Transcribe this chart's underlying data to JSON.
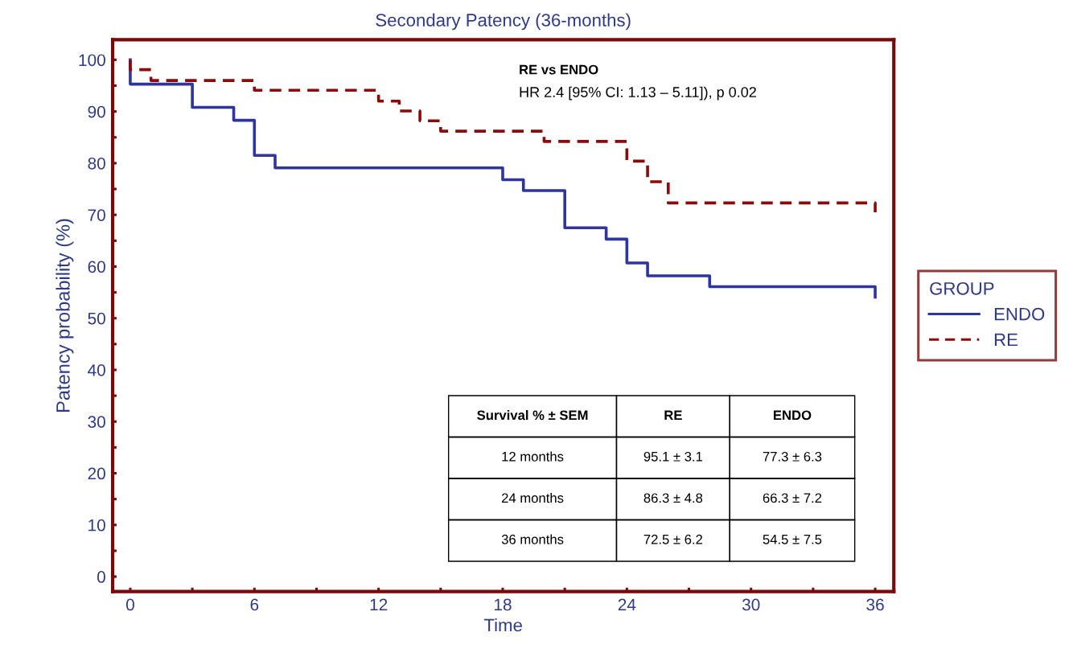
{
  "chart_data": {
    "type": "step",
    "title": "Secondary Patency (36-months)",
    "xlabel": "Time",
    "ylabel": "Patency probability (%)",
    "legend_title": "GROUP",
    "series": [
      {
        "name": "ENDO",
        "color": "#2e35a0",
        "line_style": "solid",
        "x": [
          0,
          0,
          3,
          5,
          6,
          7,
          18,
          19,
          21,
          23,
          24,
          25,
          28,
          36,
          36
        ],
        "values": [
          100,
          95.3,
          90.8,
          88.3,
          81.5,
          79.1,
          76.8,
          74.7,
          67.5,
          65.3,
          60.7,
          58.2,
          56.1,
          56.1,
          54.1
        ]
      },
      {
        "name": "RE",
        "color": "#8b0a0a",
        "line_style": "dashed",
        "x": [
          0,
          0,
          1,
          6,
          12,
          13,
          14,
          15,
          20,
          24,
          25,
          26,
          36,
          36
        ],
        "values": [
          100,
          98.1,
          96.0,
          94.1,
          92.0,
          90.1,
          88.2,
          86.2,
          84.2,
          80.4,
          76.4,
          72.3,
          72.3,
          70.5
        ]
      }
    ],
    "xlim": [
      -0.85,
      36.9
    ],
    "ylim": [
      -2.9,
      103.9
    ],
    "xticks": [
      0,
      {
        "value": 3,
        "label": null
      },
      6,
      {
        "value": 9,
        "label": null
      },
      12,
      {
        "value": 15,
        "label": null
      },
      18,
      {
        "value": 21,
        "label": null
      },
      24,
      {
        "value": 27,
        "label": null
      },
      30,
      {
        "value": 33,
        "label": null
      },
      36
    ],
    "yticks": [
      0,
      {
        "value": 5,
        "label": null
      },
      10,
      {
        "value": 15,
        "label": null
      },
      20,
      {
        "value": 25,
        "label": null
      },
      30,
      {
        "value": 35,
        "label": null
      },
      40,
      {
        "value": 45,
        "label": null
      },
      50,
      {
        "value": 55,
        "label": null
      },
      60,
      {
        "value": 65,
        "label": null
      },
      70,
      {
        "value": 75,
        "label": null
      },
      80,
      {
        "value": 85,
        "label": null
      },
      90,
      {
        "value": 95,
        "label": null
      },
      100
    ],
    "grid": false,
    "legend": "right",
    "annotations": [
      "RE vs ENDO",
      "HR 2.4 [95% CI: 1.13 – 5.11]), p 0.02",
      "Survival % ± SEM",
      "RE",
      "ENDO",
      "12 months",
      "95.1 ± 3.1",
      "77.3 ± 6.3",
      "24 months",
      "86.3 ± 4.8",
      "66.3 ± 7.2",
      "36 months",
      "72.5 ± 6.2",
      "54.5 ± 7.5"
    ]
  }
}
